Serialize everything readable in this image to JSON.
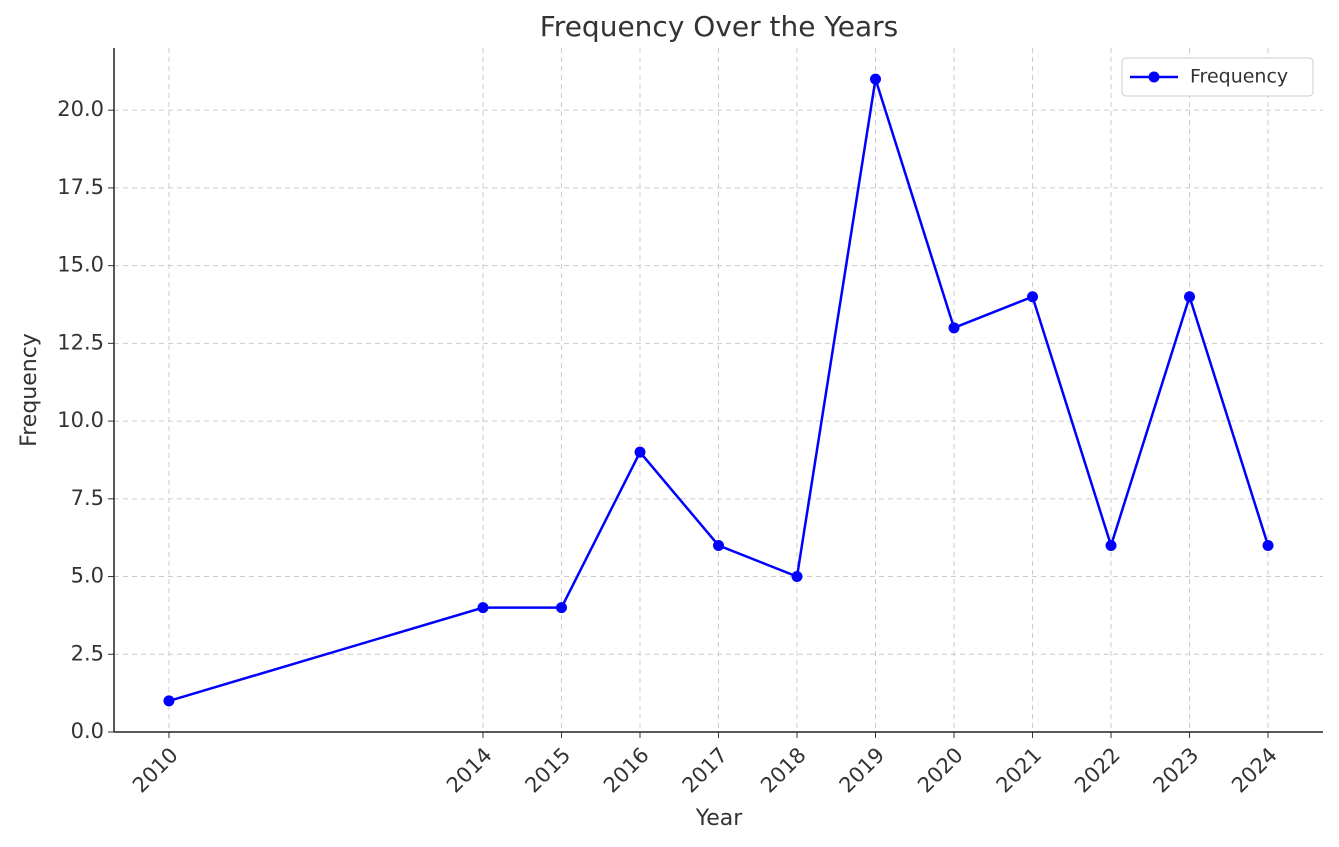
{
  "chart_data": {
    "type": "line",
    "title": "Frequency Over the Years",
    "x_label": "Year",
    "y_label": "Frequency",
    "x": [
      2010,
      2014,
      2015,
      2016,
      2017,
      2018,
      2019,
      2020,
      2021,
      2022,
      2023,
      2024
    ],
    "series": [
      {
        "name": "Frequency",
        "color": "#0000ff",
        "values": [
          1,
          4,
          4,
          9,
          6,
          5,
          21,
          13,
          14,
          6,
          14,
          6
        ]
      }
    ],
    "xlim": [
      2009.3,
      2024.7
    ],
    "ylim": [
      0,
      22
    ],
    "xticks": [
      2010,
      2014,
      2015,
      2016,
      2017,
      2018,
      2019,
      2020,
      2021,
      2022,
      2023,
      2024
    ],
    "yticks": [
      {
        "value": 0,
        "label": "0.0"
      },
      2.5,
      {
        "value": 5,
        "label": "5.0"
      },
      7.5,
      {
        "value": 10,
        "label": "10.0"
      },
      12.5,
      {
        "value": 15,
        "label": "15.0"
      },
      17.5,
      {
        "value": 20,
        "label": "20.0"
      }
    ],
    "grid": true,
    "legend": "upper right"
  }
}
